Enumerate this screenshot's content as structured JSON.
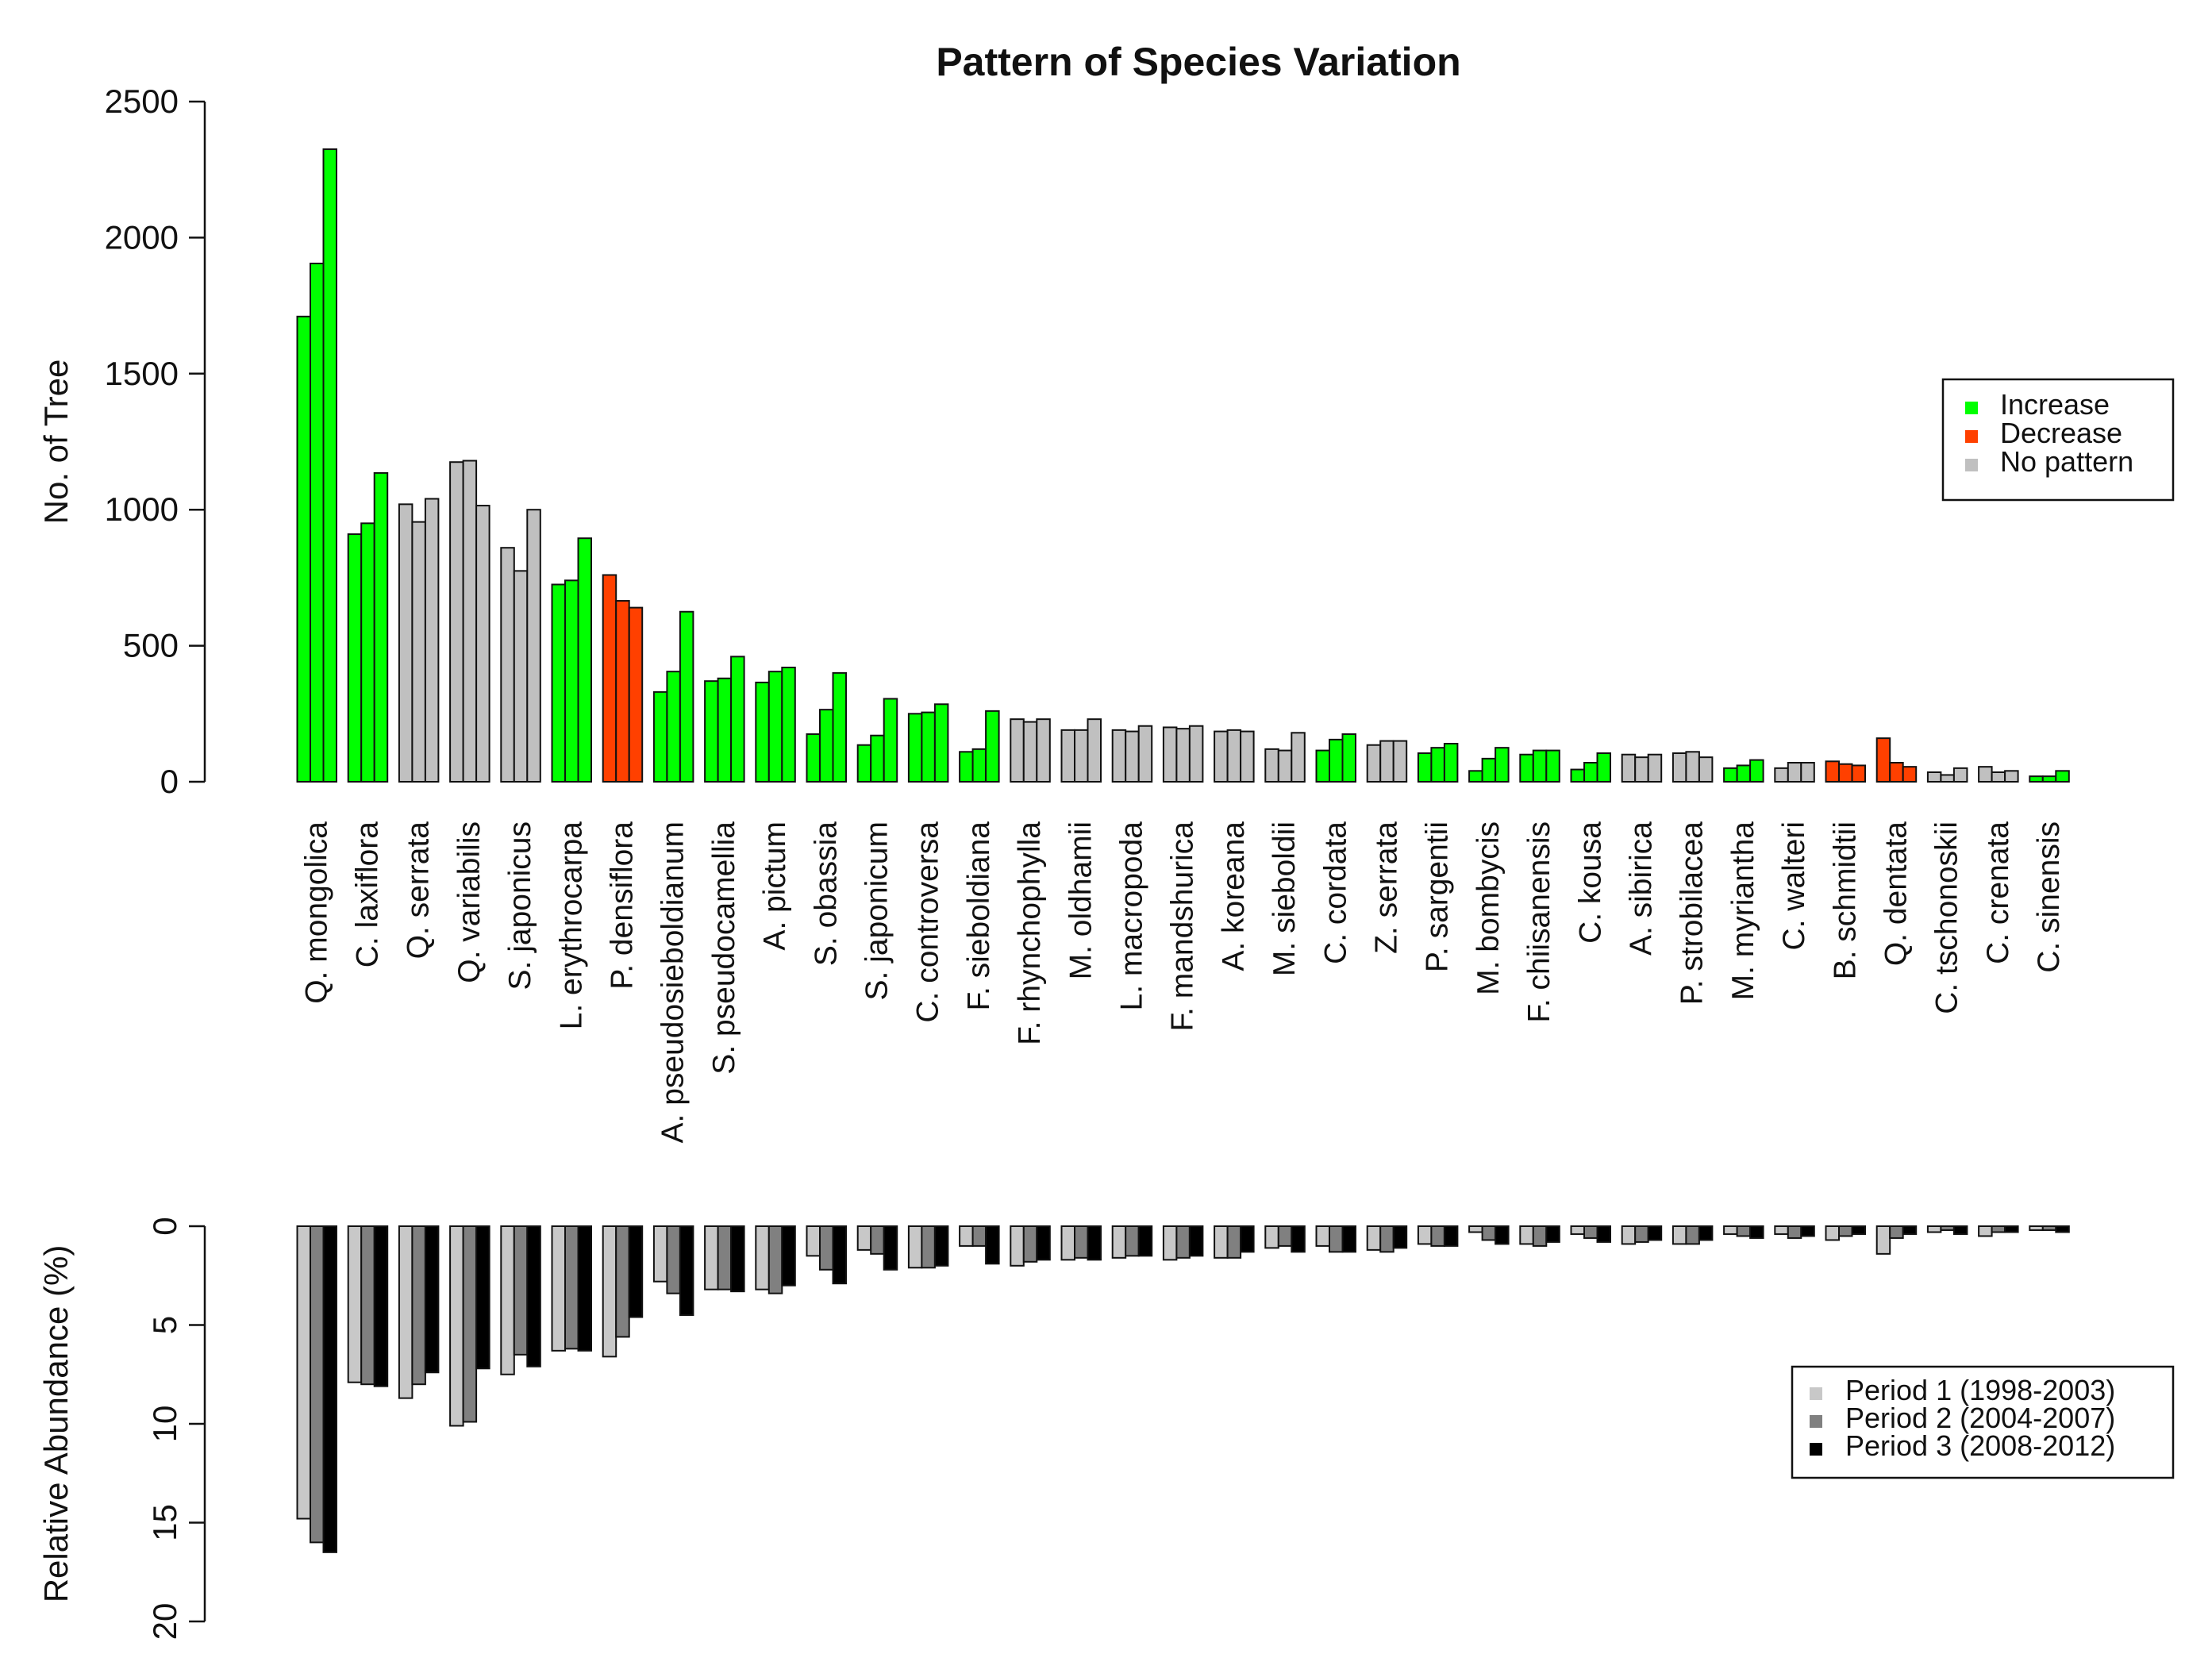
{
  "chart_data": [
    {
      "type": "bar",
      "title": "Pattern of Species Variation",
      "ylabel": "No. of Tree",
      "ylim": [
        0,
        2500
      ],
      "yticks": [
        0,
        500,
        1000,
        1500,
        2000,
        2500
      ],
      "legend": {
        "placement": "right",
        "entries": [
          {
            "label": "Increase",
            "color": "#00ff00"
          },
          {
            "label": "Decrease",
            "color": "#ff4000"
          },
          {
            "label": "No pattern",
            "color": "#c0c0c0"
          }
        ]
      },
      "categories": [
        "Q. mongolica",
        "C. laxiflora",
        "Q. serrata",
        "Q. variabilis",
        "S. japonicus",
        "L. erythrocarpa",
        "P. densiflora",
        "A. pseudosieboldianum",
        "S. pseudocamellia",
        "A. pictum",
        "S. obassia",
        "S. japonicum",
        "C. controversa",
        "F. sieboldiana",
        "F. rhynchophylla",
        "M. oldhamii",
        "L. macropoda",
        "F. mandshurica",
        "A. koreana",
        "M. sieboldii",
        "C. cordata",
        "Z. serrata",
        "P. sargentii",
        "M. bombycis",
        "F. chiisanensis",
        "C. kousa",
        "A. sibirica",
        "P. strobilacea",
        "M. myriantha",
        "C. walteri",
        "B. schmidtii",
        "Q. dentata",
        "C. tschonoskii",
        "C. crenata",
        "C. sinensis"
      ],
      "pattern": [
        "Increase",
        "Increase",
        "No pattern",
        "No pattern",
        "No pattern",
        "Increase",
        "Decrease",
        "Increase",
        "Increase",
        "Increase",
        "Increase",
        "Increase",
        "Increase",
        "Increase",
        "No pattern",
        "No pattern",
        "No pattern",
        "No pattern",
        "No pattern",
        "No pattern",
        "Increase",
        "No pattern",
        "Increase",
        "Increase",
        "Increase",
        "Increase",
        "No pattern",
        "No pattern",
        "Increase",
        "No pattern",
        "Decrease",
        "Decrease",
        "No pattern",
        "No pattern",
        "Increase"
      ],
      "series": [
        {
          "name": "Period 1",
          "values": [
            1710,
            910,
            1020,
            1175,
            860,
            725,
            760,
            330,
            370,
            365,
            175,
            135,
            250,
            110,
            230,
            190,
            190,
            200,
            185,
            120,
            115,
            135,
            105,
            40,
            100,
            45,
            100,
            105,
            50,
            50,
            75,
            160,
            35,
            55,
            20
          ]
        },
        {
          "name": "Period 2",
          "values": [
            1905,
            950,
            955,
            1180,
            775,
            740,
            665,
            405,
            380,
            405,
            265,
            170,
            255,
            120,
            220,
            190,
            185,
            195,
            190,
            115,
            155,
            150,
            125,
            85,
            115,
            70,
            90,
            110,
            60,
            70,
            65,
            70,
            25,
            35,
            20
          ]
        },
        {
          "name": "Period 3",
          "values": [
            2325,
            1135,
            1040,
            1015,
            1000,
            895,
            640,
            625,
            460,
            420,
            400,
            305,
            285,
            260,
            230,
            230,
            205,
            205,
            185,
            180,
            175,
            150,
            140,
            125,
            115,
            105,
            100,
            90,
            80,
            70,
            60,
            55,
            50,
            40,
            40
          ]
        }
      ]
    },
    {
      "type": "bar",
      "ylabel": "Relative Abundance (%)",
      "ylim": [
        0,
        20
      ],
      "inverted": true,
      "yticks": [
        0,
        5,
        10,
        15,
        20
      ],
      "legend": {
        "placement": "right",
        "entries": [
          {
            "label": "Period 1 (1998-2003)",
            "color": "#c8c8c8"
          },
          {
            "label": "Period 2 (2004-2007)",
            "color": "#808080"
          },
          {
            "label": "Period 3 (2008-2012)",
            "color": "#000000"
          }
        ]
      },
      "series": [
        {
          "name": "Period 1 (1998-2003)",
          "values": [
            14.8,
            7.9,
            8.7,
            10.1,
            7.5,
            6.3,
            6.6,
            2.8,
            3.2,
            3.2,
            1.5,
            1.2,
            2.1,
            1.0,
            2.0,
            1.7,
            1.6,
            1.7,
            1.6,
            1.1,
            1.0,
            1.2,
            0.9,
            0.3,
            0.9,
            0.4,
            0.9,
            0.9,
            0.4,
            0.4,
            0.7,
            1.4,
            0.3,
            0.5,
            0.2
          ]
        },
        {
          "name": "Period 2 (2004-2007)",
          "values": [
            16.0,
            8.0,
            8.0,
            9.9,
            6.5,
            6.2,
            5.6,
            3.4,
            3.2,
            3.4,
            2.2,
            1.4,
            2.1,
            1.0,
            1.8,
            1.6,
            1.5,
            1.6,
            1.6,
            1.0,
            1.3,
            1.3,
            1.0,
            0.7,
            1.0,
            0.6,
            0.8,
            0.9,
            0.5,
            0.6,
            0.5,
            0.6,
            0.2,
            0.3,
            0.2
          ]
        },
        {
          "name": "Period 3 (2008-2012)",
          "values": [
            16.5,
            8.1,
            7.4,
            7.2,
            7.1,
            6.3,
            4.6,
            4.5,
            3.3,
            3.0,
            2.9,
            2.2,
            2.0,
            1.9,
            1.7,
            1.7,
            1.5,
            1.5,
            1.3,
            1.3,
            1.3,
            1.1,
            1.0,
            0.9,
            0.8,
            0.8,
            0.7,
            0.7,
            0.6,
            0.5,
            0.4,
            0.4,
            0.4,
            0.3,
            0.3
          ]
        }
      ]
    }
  ]
}
